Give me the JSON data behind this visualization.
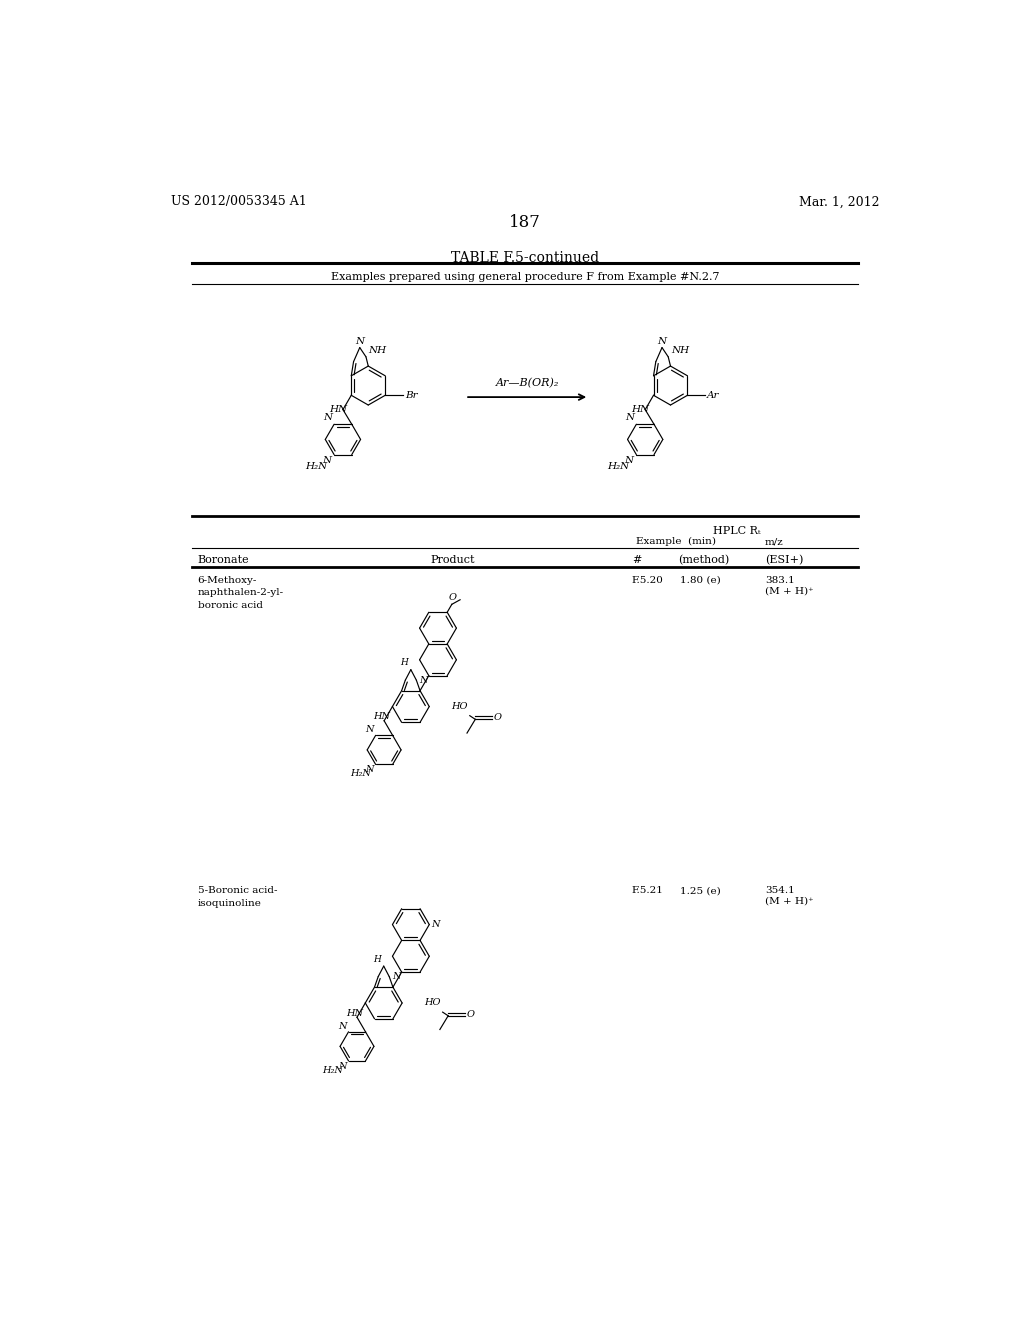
{
  "page_number": "187",
  "patent_number": "US 2012/0053345 A1",
  "patent_date": "Mar. 1, 2012",
  "table_title": "TABLE F.5-continued",
  "table_subtitle": "Examples prepared using general procedure F from Example #N.2.7",
  "bg_color": "#ffffff",
  "text_color": "#000000",
  "line_color": "#000000",
  "rows": [
    {
      "boronate": "6-Methoxy-\nnaphthalen-2-yl-\nboronic acid",
      "example": "F.5.20",
      "hplc_min": "1.80 (e)",
      "mz": "383.1",
      "mz2": "(M + H)⁺"
    },
    {
      "boronate": "5-Boronic acid-\nisoquinoline",
      "example": "F.5.21",
      "hplc_min": "1.25 (e)",
      "mz": "354.1",
      "mz2": "(M + H)⁺"
    }
  ]
}
